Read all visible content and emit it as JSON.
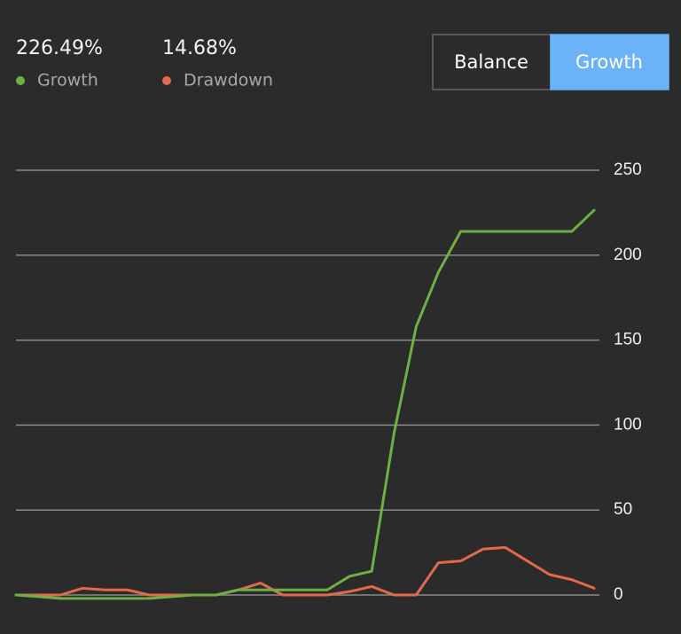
{
  "chart_data": {
    "type": "line",
    "series": [
      {
        "name": "Growth",
        "summary": "226.49%",
        "color": "#6fb043",
        "values": [
          0,
          -1,
          -2,
          -2,
          -2,
          -2,
          -2,
          -1,
          0,
          0,
          3,
          3,
          3,
          3,
          3,
          11,
          14,
          95,
          158,
          190,
          214,
          214,
          214,
          214,
          214,
          214,
          226.49
        ]
      },
      {
        "name": "Drawdown",
        "summary": "14.68%",
        "color": "#e2694c",
        "values": [
          0,
          0,
          0,
          4,
          3,
          3,
          0,
          0,
          0,
          0,
          3,
          7,
          0,
          0,
          0,
          2,
          5,
          0,
          0,
          19,
          20,
          27,
          28,
          20,
          12,
          9,
          4
        ]
      }
    ],
    "ylim": [
      0,
      250
    ],
    "yticks": [
      0,
      50,
      100,
      150,
      200,
      250
    ],
    "grid": true
  },
  "toolbar": {
    "buttons": [
      "Balance",
      "Growth"
    ],
    "selected": 1
  }
}
